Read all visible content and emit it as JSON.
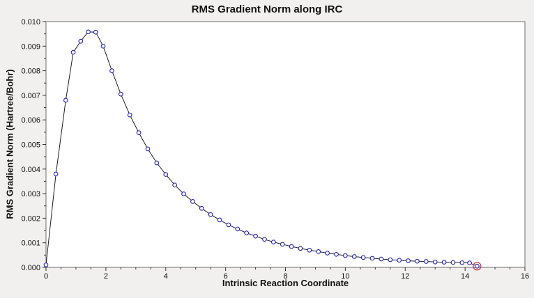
{
  "chart_data": {
    "type": "line",
    "title": "RMS Gradient Norm along IRC",
    "xlabel": "Intrinsic Reaction Coordinate",
    "ylabel": "RMS Gradient Norm (Hartree/Bohr)",
    "xlim": [
      0,
      16
    ],
    "ylim": [
      0,
      0.01
    ],
    "x_tick_step": 2,
    "y_tick_step": 0.001,
    "x_minor_step": 0.5,
    "y_minor_step": 0.0005,
    "grid": false,
    "legend_position": "none",
    "colors": {
      "page_background": "#f1f0ee",
      "plot_background": "#ffffff",
      "plot_border": "#6b6b6b",
      "line": "#1c1c1c",
      "marker": "#2222bb",
      "marker_fill": "#ffffff",
      "highlight_ring": "#d03a3a",
      "text": "#111111"
    },
    "series": [
      {
        "name": "RMS gradient norm",
        "marker": "open-circle",
        "x": [
          0,
          0.33,
          0.66,
          0.91,
          1.16,
          1.41,
          1.66,
          1.91,
          2.2,
          2.5,
          2.8,
          3.1,
          3.4,
          3.7,
          4.0,
          4.3,
          4.6,
          4.9,
          5.2,
          5.5,
          5.8,
          6.1,
          6.4,
          6.7,
          7.0,
          7.3,
          7.6,
          7.9,
          8.2,
          8.5,
          8.8,
          9.1,
          9.4,
          9.7,
          10.0,
          10.3,
          10.6,
          10.9,
          11.2,
          11.5,
          11.8,
          12.1,
          12.4,
          12.7,
          13.0,
          13.3,
          13.6,
          13.9,
          14.15,
          14.4
        ],
        "y": [
          0.0001,
          0.0038,
          0.0068,
          0.00875,
          0.0092,
          0.00958,
          0.00957,
          0.009,
          0.008,
          0.00705,
          0.0062,
          0.00548,
          0.00482,
          0.00425,
          0.00378,
          0.00335,
          0.00299,
          0.00268,
          0.0024,
          0.00215,
          0.00193,
          0.00173,
          0.00156,
          0.0014,
          0.00127,
          0.00114,
          0.00103,
          0.00094,
          0.00085,
          0.00077,
          0.0007,
          0.00064,
          0.00058,
          0.00053,
          0.00048,
          0.00044,
          0.0004,
          0.00037,
          0.00034,
          0.00031,
          0.00029,
          0.00027,
          0.00025,
          0.00024,
          0.00022,
          0.00021,
          0.0002,
          0.00019,
          0.00018,
          5e-05
        ]
      }
    ],
    "highlight_last_point": true
  }
}
